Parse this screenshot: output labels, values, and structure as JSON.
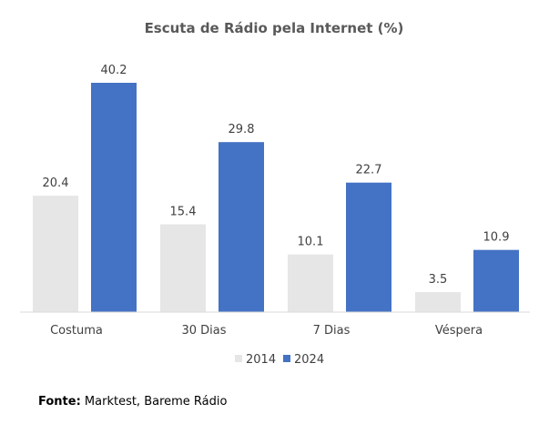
{
  "chart_data": {
    "type": "bar",
    "title": "Escuta de Rádio pela Internet (%)",
    "categories": [
      "Costuma",
      "30 Dias",
      "7 Dias",
      "Véspera"
    ],
    "series": [
      {
        "name": "2014",
        "values": [
          20.4,
          15.4,
          10.1,
          3.5
        ],
        "color": "#e7e6e6"
      },
      {
        "name": "2024",
        "values": [
          40.2,
          29.8,
          22.7,
          10.9
        ],
        "color": "#4472c4"
      }
    ],
    "xlabel": "",
    "ylabel": "",
    "ylim": [
      0,
      45
    ],
    "grid": false,
    "legend_position": "bottom",
    "data_labels": true
  },
  "source": {
    "label": "Fonte:",
    "text": " Marktest, Bareme Rádio"
  },
  "colors": {
    "baseline": "#d9d9d9"
  }
}
